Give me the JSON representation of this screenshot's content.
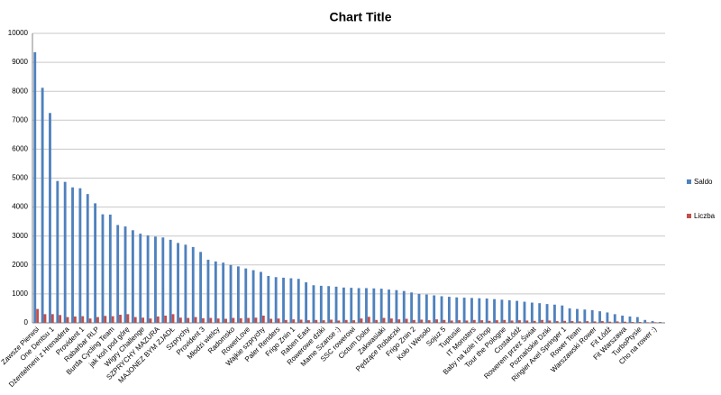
{
  "chart_data": {
    "type": "bar",
    "title": "Chart Title",
    "categories": [
      "Zawsze Pierwsi",
      null,
      "One Dentsu 1",
      null,
      "Dżentelmeni z Hrenadera",
      null,
      "Provident 1",
      null,
      "Rabarbar RLP",
      null,
      "Burda Cycling Team",
      null,
      "jak koń pod górę",
      null,
      "Wigry Challenge",
      null,
      "SZPRYCHY MAZURA",
      null,
      "MAJONEZ BYM ZJADŁ",
      null,
      "Szprychy",
      null,
      "Provident 3",
      null,
      "Młodzi wielcy",
      null,
      "Radomsko",
      null,
      "RowerLove",
      null,
      "Wajkie szprychy",
      null,
      "Paler Renders",
      null,
      "Frigo Znin 1",
      null,
      "Raben East",
      null,
      "Rowerowe dziki",
      null,
      "Mame Szanse :)",
      null,
      "SSC rowerowi",
      null,
      "Cictum Dolor",
      null,
      "Zakwasiaki",
      null,
      "Pędzące Robaczki",
      null,
      "Frigo Znin 2",
      null,
      "Koło i Wesoło",
      null,
      "Sojuz 5",
      null,
      "Tuptusie",
      null,
      "IT Monsters",
      null,
      "Baby na kole i Ehop",
      null,
      "Tour the Pologne",
      null,
      "CostaŁódź",
      null,
      "Rowerem przez Świat",
      null,
      "Poznańskie Dziki",
      null,
      "Ringier Axel Springer 1",
      null,
      "Rower Team",
      null,
      "Warszawski Rower",
      null,
      "Fit Łódź",
      null,
      "Fit Warszawa",
      null,
      "TurboPtysie",
      null,
      "Cho na rower :)",
      null
    ],
    "series": [
      {
        "name": "Saldo",
        "color": "#4f81bd",
        "values": [
          9350,
          8120,
          7250,
          4900,
          4870,
          4680,
          4650,
          4450,
          4130,
          3750,
          3740,
          3380,
          3330,
          3200,
          3080,
          3020,
          2980,
          2950,
          2870,
          2760,
          2700,
          2620,
          2450,
          2180,
          2120,
          2080,
          2000,
          1950,
          1880,
          1820,
          1760,
          1620,
          1580,
          1560,
          1540,
          1520,
          1400,
          1300,
          1280,
          1270,
          1250,
          1220,
          1210,
          1200,
          1200,
          1190,
          1180,
          1150,
          1130,
          1100,
          1050,
          1000,
          980,
          950,
          920,
          900,
          880,
          870,
          860,
          850,
          840,
          820,
          800,
          780,
          760,
          730,
          700,
          680,
          650,
          630,
          600,
          500,
          480,
          460,
          440,
          400,
          360,
          300,
          250,
          220,
          200,
          100,
          60,
          30
        ]
      },
      {
        "name": "Liczba",
        "color": "#c0504d",
        "values": [
          480,
          300,
          300,
          270,
          200,
          220,
          230,
          150,
          200,
          240,
          230,
          280,
          300,
          200,
          180,
          150,
          220,
          250,
          300,
          180,
          170,
          200,
          160,
          170,
          150,
          140,
          170,
          160,
          170,
          180,
          250,
          140,
          150,
          100,
          120,
          110,
          90,
          100,
          90,
          110,
          80,
          100,
          90,
          150,
          210,
          100,
          170,
          150,
          120,
          140,
          100,
          110,
          90,
          120,
          100,
          80,
          90,
          80,
          100,
          90,
          70,
          90,
          100,
          80,
          90,
          80,
          70,
          100,
          80,
          60,
          70,
          60,
          50,
          60,
          50,
          60,
          40,
          50,
          40,
          30,
          30,
          20,
          20,
          10
        ]
      }
    ],
    "ylim": [
      0,
      10000
    ],
    "yticks": [
      0,
      1000,
      2000,
      3000,
      4000,
      5000,
      6000,
      7000,
      8000,
      9000,
      10000
    ],
    "grid": true,
    "legend": "right"
  }
}
